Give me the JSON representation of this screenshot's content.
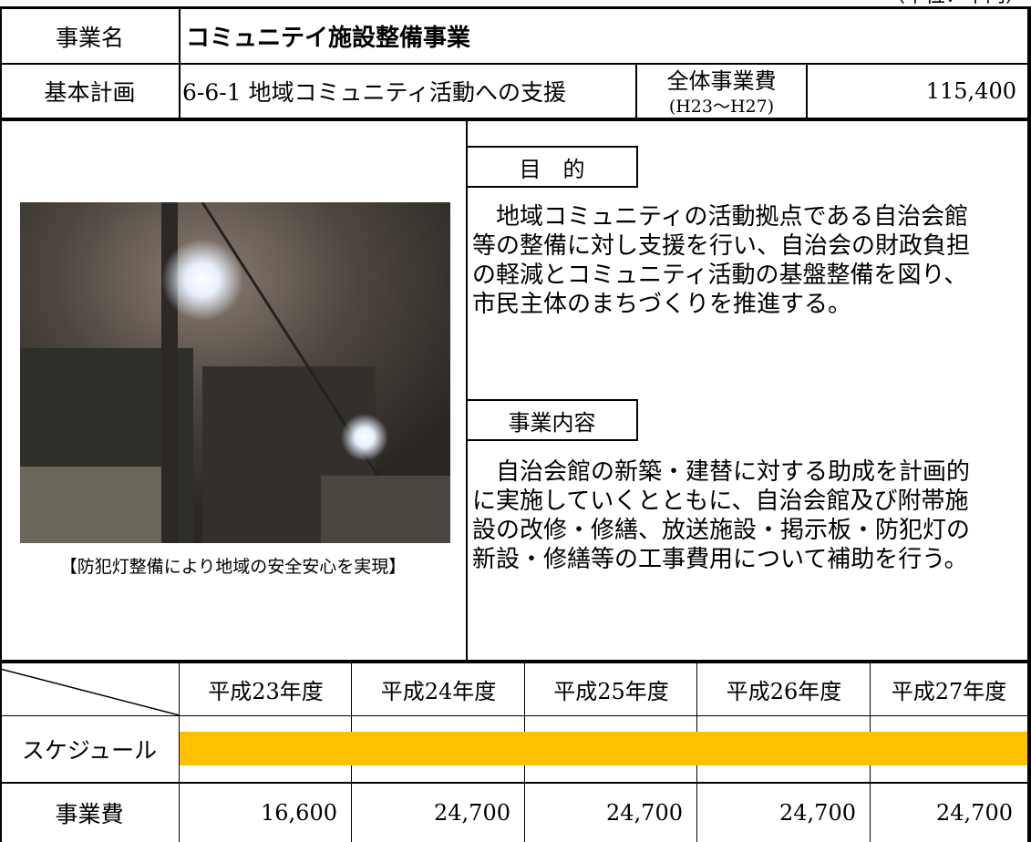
{
  "unit": "（単位：千円）",
  "project": {
    "label": "事業名",
    "name": "コミュニテイ施設整備事業"
  },
  "plan": {
    "label": "基本計画",
    "value": "6-6-1 地域コミュニティ活動への支援",
    "cost_label": "全体事業費",
    "cost_period": "(H23～H27)",
    "cost": "115,400"
  },
  "photo": {
    "caption": "【防犯灯整備により地域の安全安心を実現】"
  },
  "purpose": {
    "heading": "目　的",
    "lines": [
      "　地域コミュニティの活動拠点である自治会館",
      "等の整備に対し支援を行い、自治会の財政負担",
      "の軽減とコミュニティ活動の基盤整備を図り、",
      "市民主体のまちづくりを推進する。"
    ]
  },
  "content": {
    "heading": "事業内容",
    "lines": [
      "　自治会館の新築・建替に対する助成を計画的",
      "に実施していくとともに、自治会館及び附帯施",
      "設の改修・修繕、放送施設・掲示板・防犯灯の",
      "新設・修繕等の工事費用について補助を行う。"
    ]
  },
  "table": {
    "years": [
      "平成23年度",
      "平成24年度",
      "平成25年度",
      "平成26年度",
      "平成27年度"
    ],
    "schedule_label": "スケジュール",
    "cost_label": "事業費",
    "costs": [
      "16,600",
      "24,700",
      "24,700",
      "24,700",
      "24,700"
    ]
  }
}
